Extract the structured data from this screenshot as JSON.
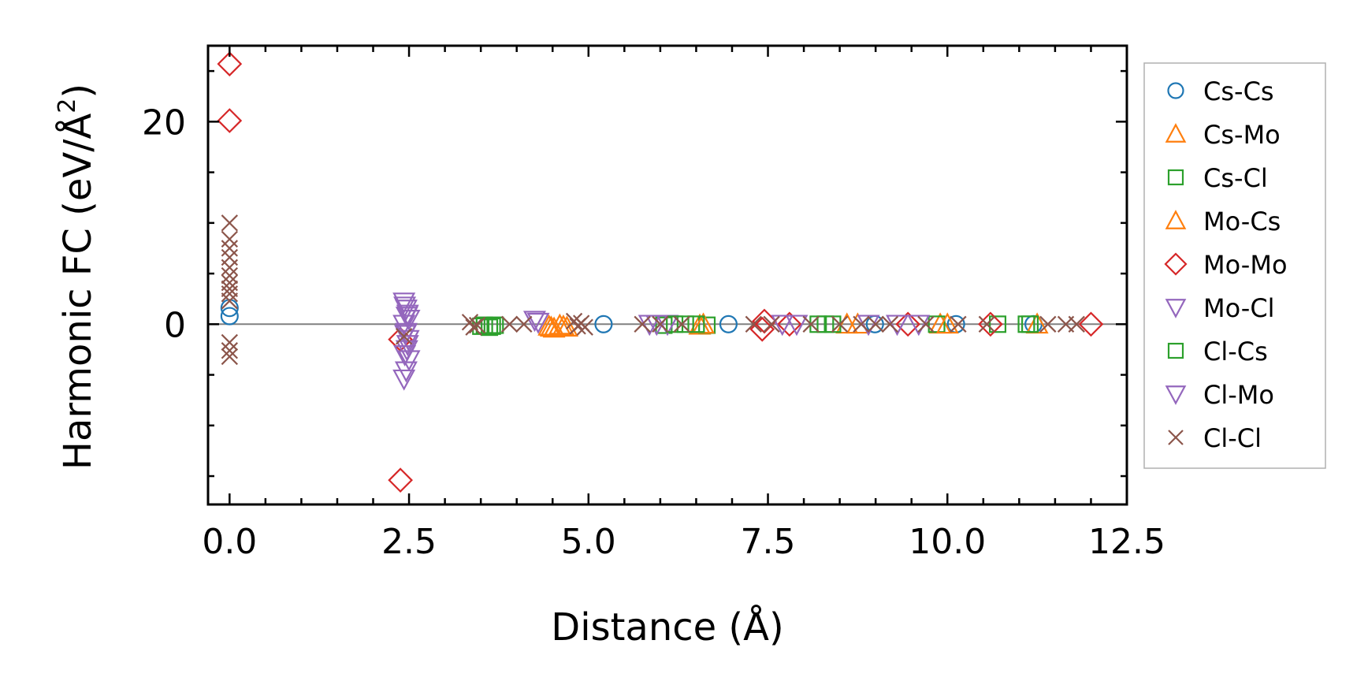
{
  "chart_data": {
    "type": "scatter",
    "title": "",
    "xlabel": "Distance (Å)",
    "ylabel": "Harmonic FC (eV/Å",
    "ylabel_sup": "2",
    "ylabel_close": ")",
    "xlim": [
      -0.3,
      12.5
    ],
    "ylim": [
      -17.8,
      27.5
    ],
    "xticks": [
      0.0,
      2.5,
      5.0,
      7.5,
      10.0,
      12.5
    ],
    "xtick_labels": [
      "0.0",
      "2.5",
      "5.0",
      "7.5",
      "10.0",
      "12.5"
    ],
    "xticks_minor": [
      0.5,
      1.0,
      1.5,
      2.0,
      3.0,
      3.5,
      4.0,
      4.5,
      5.5,
      6.0,
      6.5,
      7.0,
      8.0,
      8.5,
      9.0,
      9.5,
      10.5,
      11.0,
      11.5,
      12.0
    ],
    "yticks": [
      0,
      20
    ],
    "ytick_labels": [
      "0",
      "20"
    ],
    "yticks_minor": [
      -15,
      -10,
      -5,
      5,
      10,
      15,
      25
    ],
    "reference_line_y": 0,
    "legend_position": "outside-right",
    "series": [
      {
        "name": "Cs-Cs",
        "marker": "circle",
        "color": "#1f77b4",
        "points": [
          [
            0.0,
            0.8
          ],
          [
            0.0,
            1.6
          ],
          [
            5.21,
            0.0
          ],
          [
            6.95,
            0.0
          ],
          [
            8.99,
            0.0
          ],
          [
            10.12,
            0.0
          ],
          [
            11.2,
            0.0
          ]
        ]
      },
      {
        "name": "Cs-Mo",
        "marker": "triangle-up",
        "color": "#ff7f0e",
        "points": [
          [
            4.45,
            -0.2
          ],
          [
            4.52,
            -0.4
          ],
          [
            4.6,
            -0.1
          ],
          [
            4.7,
            -0.3
          ],
          [
            6.55,
            -0.1
          ],
          [
            8.6,
            0.0
          ],
          [
            9.9,
            0.0
          ],
          [
            11.25,
            0.0
          ]
        ]
      },
      {
        "name": "Cs-Cl",
        "marker": "square",
        "color": "#2ca02c",
        "points": [
          [
            3.55,
            -0.1
          ],
          [
            3.62,
            -0.3
          ],
          [
            3.7,
            -0.1
          ],
          [
            6.05,
            -0.1
          ],
          [
            6.35,
            0.0
          ],
          [
            6.65,
            -0.1
          ],
          [
            8.2,
            0.0
          ],
          [
            8.4,
            0.0
          ],
          [
            9.85,
            0.0
          ],
          [
            10.7,
            0.0
          ],
          [
            11.1,
            0.0
          ]
        ]
      },
      {
        "name": "Mo-Cs",
        "marker": "triangle-up",
        "color": "#ff7f0e",
        "points": [
          [
            4.48,
            -0.3
          ],
          [
            4.65,
            -0.2
          ],
          [
            6.6,
            0.0
          ],
          [
            8.75,
            0.0
          ],
          [
            10.0,
            0.0
          ]
        ]
      },
      {
        "name": "Mo-Mo",
        "marker": "diamond",
        "color": "#d62728",
        "points": [
          [
            0.0,
            25.7
          ],
          [
            0.0,
            20.1
          ],
          [
            2.38,
            -1.5
          ],
          [
            2.38,
            -15.4
          ],
          [
            7.42,
            -0.5
          ],
          [
            7.45,
            0.3
          ],
          [
            7.8,
            0.0
          ],
          [
            9.45,
            0.0
          ],
          [
            10.6,
            0.0
          ],
          [
            12.0,
            0.0
          ]
        ]
      },
      {
        "name": "Mo-Cl",
        "marker": "triangle-down",
        "color": "#9467bd",
        "points": [
          [
            2.43,
            2.2
          ],
          [
            2.46,
            1.5
          ],
          [
            2.48,
            1.0
          ],
          [
            2.5,
            0.5
          ],
          [
            2.43,
            0.0
          ],
          [
            2.46,
            -0.8
          ],
          [
            2.49,
            -1.5
          ],
          [
            2.47,
            -2.5
          ],
          [
            2.5,
            -3.5
          ],
          [
            2.46,
            -4.6
          ],
          [
            2.43,
            -5.4
          ],
          [
            4.25,
            0.4
          ],
          [
            5.85,
            0.0
          ],
          [
            6.1,
            0.0
          ],
          [
            7.7,
            0.0
          ],
          [
            8.9,
            0.0
          ],
          [
            9.6,
            0.0
          ]
        ]
      },
      {
        "name": "Cl-Cs",
        "marker": "square",
        "color": "#2ca02c",
        "points": [
          [
            3.5,
            -0.2
          ],
          [
            3.66,
            -0.2
          ],
          [
            6.2,
            0.0
          ],
          [
            6.5,
            0.0
          ],
          [
            8.3,
            0.0
          ],
          [
            11.15,
            0.0
          ]
        ]
      },
      {
        "name": "Cl-Mo",
        "marker": "triangle-down",
        "color": "#9467bd",
        "points": [
          [
            2.44,
            1.8
          ],
          [
            2.47,
            0.8
          ],
          [
            2.45,
            -1.0
          ],
          [
            2.48,
            -2.0
          ],
          [
            2.44,
            -3.0
          ],
          [
            4.3,
            0.2
          ],
          [
            5.95,
            0.0
          ],
          [
            7.9,
            0.0
          ],
          [
            9.3,
            0.0
          ]
        ]
      },
      {
        "name": "Cl-Cl",
        "marker": "x",
        "color": "#8c564b",
        "points": [
          [
            0.0,
            10.0
          ],
          [
            0.0,
            8.4
          ],
          [
            0.0,
            7.5
          ],
          [
            0.0,
            6.6
          ],
          [
            0.0,
            5.6
          ],
          [
            0.0,
            4.8
          ],
          [
            0.0,
            4.1
          ],
          [
            0.0,
            3.5
          ],
          [
            0.0,
            3.0
          ],
          [
            0.0,
            2.3
          ],
          [
            0.0,
            -1.8
          ],
          [
            0.0,
            -2.6
          ],
          [
            0.0,
            -3.2
          ],
          [
            2.43,
            -1.2
          ],
          [
            3.35,
            0.2
          ],
          [
            3.4,
            -0.3
          ],
          [
            3.45,
            -0.1
          ],
          [
            3.9,
            0.0
          ],
          [
            4.1,
            0.0
          ],
          [
            4.8,
            0.3
          ],
          [
            4.85,
            -0.2
          ],
          [
            4.9,
            0.1
          ],
          [
            4.95,
            -0.3
          ],
          [
            5.75,
            0.0
          ],
          [
            6.0,
            0.0
          ],
          [
            6.3,
            0.0
          ],
          [
            7.3,
            0.0
          ],
          [
            7.55,
            0.0
          ],
          [
            8.1,
            0.0
          ],
          [
            8.5,
            0.0
          ],
          [
            8.8,
            0.0
          ],
          [
            9.0,
            0.0
          ],
          [
            9.2,
            0.0
          ],
          [
            9.7,
            0.0
          ],
          [
            10.15,
            0.0
          ],
          [
            10.55,
            0.0
          ],
          [
            11.4,
            0.0
          ],
          [
            11.65,
            0.0
          ],
          [
            11.8,
            0.0
          ]
        ]
      }
    ]
  }
}
